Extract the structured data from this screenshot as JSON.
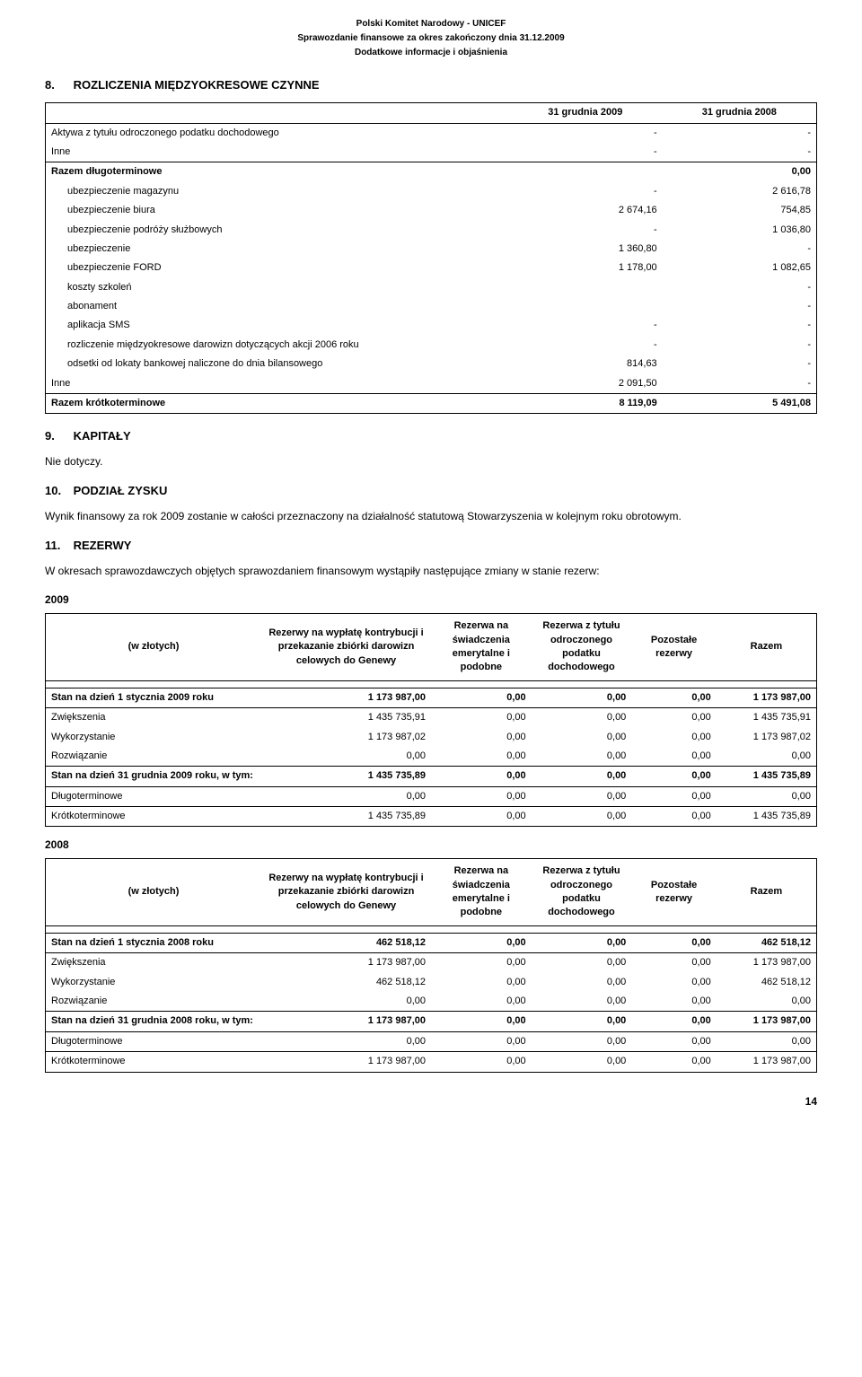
{
  "header": {
    "line1": "Polski Komitet Narodowy - UNICEF",
    "line2": "Sprawozdanie finansowe za okres zakończony dnia 31.12.2009",
    "line3": "Dodatkowe informacje i objaśnienia"
  },
  "section8": {
    "num": "8.",
    "title": "ROZLICZENIA MIĘDZYOKRESOWE CZYNNE",
    "col1": "31 grudnia 2009",
    "col2": "31 grudnia 2008",
    "rows": [
      {
        "label": "Aktywa z tytułu odroczonego podatku dochodowego",
        "v1": "-",
        "v2": "-",
        "indent": 0,
        "bold": false
      },
      {
        "label": "Inne",
        "v1": "-",
        "v2": "-",
        "indent": 0,
        "bold": false
      },
      {
        "label": "Razem długoterminowe",
        "v1": "",
        "v2": "0,00",
        "indent": 0,
        "bold": true,
        "border": true
      },
      {
        "label": "ubezpieczenie magazynu",
        "v1": "-",
        "v2": "2 616,78",
        "indent": 1,
        "bold": false
      },
      {
        "label": "ubezpieczenie biura",
        "v1": "2 674,16",
        "v2": "754,85",
        "indent": 1,
        "bold": false
      },
      {
        "label": "ubezpieczenie podróży służbowych",
        "v1": "-",
        "v2": "1 036,80",
        "indent": 1,
        "bold": false
      },
      {
        "label": "ubezpieczenie",
        "v1": "1 360,80",
        "v2": "-",
        "indent": 1,
        "bold": false
      },
      {
        "label": "ubezpieczenie FORD",
        "v1": "1 178,00",
        "v2": "1 082,65",
        "indent": 1,
        "bold": false
      },
      {
        "label": "koszty szkoleń",
        "v1": "",
        "v2": "-",
        "indent": 1,
        "bold": false
      },
      {
        "label": "abonament",
        "v1": "",
        "v2": "-",
        "indent": 1,
        "bold": false
      },
      {
        "label": "aplikacja SMS",
        "v1": "-",
        "v2": "-",
        "indent": 1,
        "bold": false
      },
      {
        "label": "rozliczenie międzyokresowe darowizn dotyczących akcji 2006 roku",
        "v1": "-",
        "v2": "-",
        "indent": 1,
        "bold": false
      },
      {
        "label": "odsetki od lokaty bankowej naliczone do dnia bilansowego",
        "v1": "814,63",
        "v2": "-",
        "indent": 1,
        "bold": false
      },
      {
        "label": "Inne",
        "v1": "2 091,50",
        "v2": "-",
        "indent": 0,
        "bold": false
      },
      {
        "label": "Razem krótkoterminowe",
        "v1": "8 119,09",
        "v2": "5 491,08",
        "indent": 0,
        "bold": true,
        "border": true
      }
    ]
  },
  "section9": {
    "num": "9.",
    "title": "KAPITAŁY",
    "body": "Nie dotyczy."
  },
  "section10": {
    "num": "10.",
    "title": "PODZIAŁ ZYSKU",
    "body": "Wynik finansowy za rok 2009 zostanie w całości przeznaczony na działalność statutową Stowarzyszenia w kolejnym roku obrotowym."
  },
  "section11": {
    "num": "11.",
    "title": "REZERWY",
    "body": "W okresach sprawozdawczych objętych sprawozdaniem finansowym wystąpiły następujące zmiany w stanie rezerw:"
  },
  "reserves_headers": {
    "c1": "(w złotych)",
    "c2": "Rezerwy na wypłatę kontrybucji i przekazanie zbiórki darowizn celowych do Genewy",
    "c3": "Rezerwa na świadczenia emerytalne i  podobne",
    "c4": "Rezerwa z tytułu odroczonego podatku dochodowego",
    "c5": "Pozostałe rezerwy",
    "c6": "Razem"
  },
  "year2009": {
    "label": "2009",
    "rows": [
      {
        "label": "Stan na dzień 1 stycznia 2009 roku",
        "v": [
          "1 173 987,00",
          "0,00",
          "0,00",
          "0,00",
          "1 173 987,00"
        ],
        "bold": true,
        "sep": true
      },
      {
        "label": "Zwiększenia",
        "v": [
          "1 435 735,91",
          "0,00",
          "0,00",
          "0,00",
          "1 435 735,91"
        ],
        "bold": false,
        "sep": true
      },
      {
        "label": "Wykorzystanie",
        "v": [
          "1 173 987,02",
          "0,00",
          "0,00",
          "0,00",
          "1 173 987,02"
        ],
        "bold": false,
        "sep": false
      },
      {
        "label": "Rozwiązanie",
        "v": [
          "0,00",
          "0,00",
          "0,00",
          "0,00",
          "0,00"
        ],
        "bold": false,
        "sep": false
      },
      {
        "label": "Stan na dzień 31 grudnia 2009 roku, w tym:",
        "v": [
          "1 435 735,89",
          "0,00",
          "0,00",
          "0,00",
          "1 435 735,89"
        ],
        "bold": true,
        "sep": true
      },
      {
        "label": "Długoterminowe",
        "v": [
          "0,00",
          "0,00",
          "0,00",
          "0,00",
          "0,00"
        ],
        "bold": false,
        "sep": true
      },
      {
        "label": "Krótkoterminowe",
        "v": [
          "1 435 735,89",
          "0,00",
          "0,00",
          "0,00",
          "1 435 735,89"
        ],
        "bold": false,
        "sep": true
      }
    ]
  },
  "year2008": {
    "label": "2008",
    "rows": [
      {
        "label": "Stan na dzień 1 stycznia 2008 roku",
        "v": [
          "462 518,12",
          "0,00",
          "0,00",
          "0,00",
          "462 518,12"
        ],
        "bold": true,
        "sep": true
      },
      {
        "label": "Zwiększenia",
        "v": [
          "1 173 987,00",
          "0,00",
          "0,00",
          "0,00",
          "1 173 987,00"
        ],
        "bold": false,
        "sep": true
      },
      {
        "label": "Wykorzystanie",
        "v": [
          "462 518,12",
          "0,00",
          "0,00",
          "0,00",
          "462 518,12"
        ],
        "bold": false,
        "sep": false
      },
      {
        "label": "Rozwiązanie",
        "v": [
          "0,00",
          "0,00",
          "0,00",
          "0,00",
          "0,00"
        ],
        "bold": false,
        "sep": false
      },
      {
        "label": "Stan na dzień 31 grudnia 2008 roku, w tym:",
        "v": [
          "1 173 987,00",
          "0,00",
          "0,00",
          "0,00",
          "1 173 987,00"
        ],
        "bold": true,
        "sep": true
      },
      {
        "label": "Długoterminowe",
        "v": [
          "0,00",
          "0,00",
          "0,00",
          "0,00",
          "0,00"
        ],
        "bold": false,
        "sep": true
      },
      {
        "label": "Krótkoterminowe",
        "v": [
          "1 173 987,00",
          "0,00",
          "0,00",
          "0,00",
          "1 173 987,00"
        ],
        "bold": false,
        "sep": true
      }
    ]
  },
  "pageNumber": "14",
  "table8_colwidths": [
    "60%",
    "20%",
    "20%"
  ],
  "tres_colwidths": [
    "28%",
    "22%",
    "13%",
    "13%",
    "11%",
    "13%"
  ]
}
